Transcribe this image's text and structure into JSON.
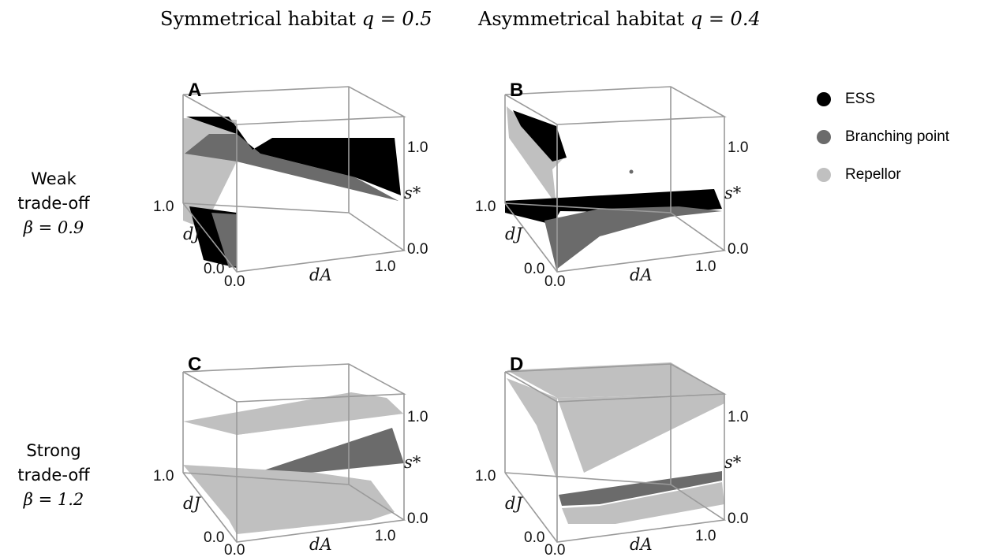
{
  "columns": [
    {
      "title": "Symmetrical habitat",
      "param": "q = 0.5"
    },
    {
      "title": "Asymmetrical habitat",
      "param": "q = 0.4"
    }
  ],
  "rows": [
    {
      "line1": "Weak",
      "line2": "trade-off",
      "param": "β = 0.9"
    },
    {
      "line1": "Strong",
      "line2": "trade-off",
      "param": "β = 1.2"
    }
  ],
  "legend": [
    {
      "label": "ESS",
      "color": "#000000"
    },
    {
      "label": "Branching point",
      "color": "#6b6b6b"
    },
    {
      "label": "Repellor",
      "color": "#c0c0c0"
    }
  ],
  "axes": {
    "x_label": "dA",
    "y_label": "dJ",
    "z_label": "s*",
    "tick_min": "0.0",
    "tick_max": "1.0"
  },
  "panels": [
    {
      "label": "A"
    },
    {
      "label": "B"
    },
    {
      "label": "C"
    },
    {
      "label": "D"
    }
  ]
}
